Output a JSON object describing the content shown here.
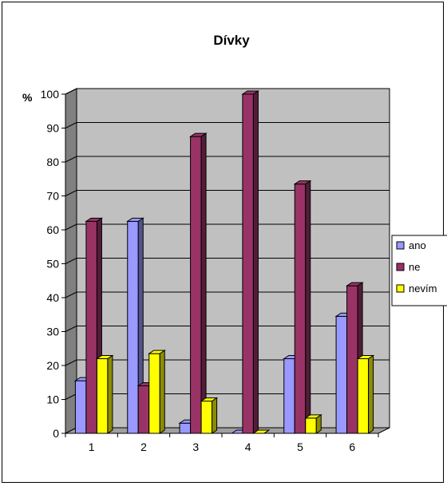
{
  "chart_data": {
    "type": "bar",
    "title": "Dívky",
    "ylabel": "%",
    "xlabel": "",
    "categories": [
      "1",
      "2",
      "3",
      "4",
      "5",
      "6"
    ],
    "series": [
      {
        "name": "ano",
        "values": [
          15.5,
          62.5,
          3,
          0,
          22,
          34.5
        ],
        "color": "#9999FF"
      },
      {
        "name": "ne",
        "values": [
          62.5,
          14,
          87.5,
          100,
          73.5,
          43.5
        ],
        "color": "#993366"
      },
      {
        "name": "nevím",
        "values": [
          22,
          23.5,
          9.5,
          0,
          4.5,
          22
        ],
        "color": "#FFFF00"
      }
    ],
    "ylim": [
      0,
      100
    ],
    "yticks": [
      0,
      10,
      20,
      30,
      40,
      50,
      60,
      70,
      80,
      90,
      100
    ],
    "ytick_labels": [
      "0",
      "10",
      "20",
      "30",
      "40",
      "50",
      "60",
      "70",
      "80",
      "90",
      "100"
    ],
    "grid": true,
    "legend_position": "right",
    "wall_color": "#C0C0C0",
    "chart_style": "3d-clustered-column"
  }
}
